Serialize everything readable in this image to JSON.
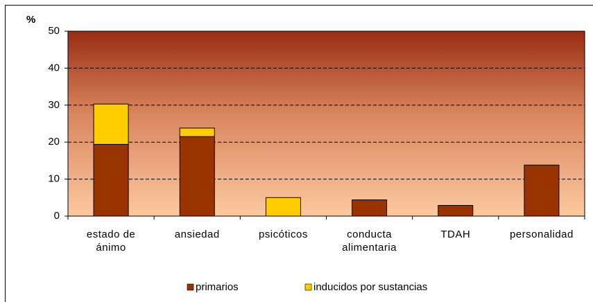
{
  "chart_data": {
    "type": "stacked_bar",
    "y_label": "%",
    "categories": [
      "estado de ánimo",
      "ansiedad",
      "psicóticos",
      "conducta alimentaria",
      "TDAH",
      "personalidad"
    ],
    "series": [
      {
        "name": "primarios",
        "color": "#993300",
        "values": [
          19.4,
          21.5,
          0,
          4.4,
          2.9,
          13.8
        ]
      },
      {
        "name": "inducidos por sustancias",
        "color": "#ffcc00",
        "values": [
          10.9,
          2.3,
          5.0,
          0,
          0,
          0
        ]
      }
    ],
    "ylim": [
      0,
      50
    ],
    "yticks": [
      0,
      10,
      20,
      30,
      40,
      50
    ],
    "grid": true,
    "legend": "bottom"
  }
}
